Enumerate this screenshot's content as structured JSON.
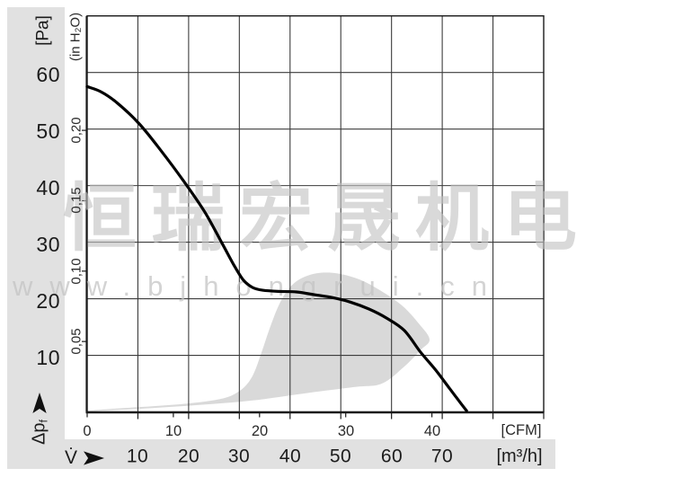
{
  "watermark": {
    "line1": "恒瑞宏晟机电",
    "line2": "www.bjhongrui.cn",
    "color": "#c3c3c3"
  },
  "colors": {
    "band": "#e1e1e1",
    "grid": "#3c3c3c",
    "border": "#1a1a1a",
    "curve": "#000000",
    "region": "#d9d9d9"
  },
  "chart_data": {
    "type": "line",
    "x_axes": {
      "primary": {
        "label": "[m³/h]",
        "axis_symbol": "V̇",
        "ticks": [
          10,
          20,
          30,
          40,
          50,
          60,
          70
        ],
        "range": [
          0,
          90
        ],
        "grid_step": 10
      },
      "secondary": {
        "label": "[CFM]",
        "ticks": [
          0,
          10,
          20,
          30,
          40
        ],
        "m3h_per_cfm": 1.699
      }
    },
    "y_axes": {
      "primary": {
        "label": "[Pa]",
        "axis_symbol_base": "Δp",
        "axis_symbol_sub": "f",
        "ticks": [
          60,
          50,
          40,
          30,
          20,
          10
        ],
        "range": [
          0,
          70
        ],
        "grid_step": 10
      },
      "secondary": {
        "label": "(in H₂O)",
        "ticks": [
          {
            "label": "0,20",
            "value": 0.2
          },
          {
            "label": "0,15",
            "value": 0.15
          },
          {
            "label": "0,10",
            "value": 0.1
          },
          {
            "label": "0,05",
            "value": 0.05
          }
        ],
        "pa_per_inh2o": 248.84
      }
    },
    "series": [
      {
        "name": "static-pressure-curve",
        "points_m3h_pa": [
          [
            0,
            57.5
          ],
          [
            2.7,
            56.6
          ],
          [
            5.8,
            54.7
          ],
          [
            10.3,
            50.9
          ],
          [
            14.7,
            46.0
          ],
          [
            19.1,
            40.7
          ],
          [
            23.2,
            35.3
          ],
          [
            26.6,
            29.8
          ],
          [
            28.9,
            26.0
          ],
          [
            30.8,
            23.3
          ],
          [
            32.6,
            22.0
          ],
          [
            34.6,
            21.5
          ],
          [
            37.7,
            21.3
          ],
          [
            41.3,
            21.2
          ],
          [
            44.8,
            20.7
          ],
          [
            48.4,
            20.2
          ],
          [
            51.9,
            19.4
          ],
          [
            55.5,
            18.2
          ],
          [
            59.0,
            16.6
          ],
          [
            62.5,
            14.4
          ],
          [
            65.7,
            10.6
          ],
          [
            68.7,
            7.4
          ],
          [
            71.4,
            4.2
          ],
          [
            73.5,
            1.7
          ],
          [
            74.8,
            0.2
          ]
        ]
      }
    ],
    "operating_region": {
      "points_m3h_pa": [
        [
          0,
          0.1
        ],
        [
          11.2,
          0.6
        ],
        [
          21.8,
          1.2
        ],
        [
          32.4,
          2.0
        ],
        [
          43.1,
          3.3
        ],
        [
          52.8,
          4.4
        ],
        [
          58.1,
          5.0
        ],
        [
          62.5,
          8.0
        ],
        [
          65.7,
          10.9
        ],
        [
          67.5,
          12.8
        ],
        [
          65.4,
          15.6
        ],
        [
          62.2,
          18.7
        ],
        [
          58.1,
          21.3
        ],
        [
          53.7,
          23.4
        ],
        [
          49.2,
          24.5
        ],
        [
          45.2,
          24.5
        ],
        [
          41.8,
          23.4
        ],
        [
          39.5,
          21.5
        ],
        [
          37.7,
          18.7
        ],
        [
          36.0,
          14.8
        ],
        [
          34.4,
          10.6
        ],
        [
          32.8,
          6.7
        ],
        [
          31.0,
          4.4
        ],
        [
          28.5,
          2.9
        ],
        [
          25.3,
          2.1
        ],
        [
          20.0,
          1.5
        ],
        [
          12.9,
          1.0
        ],
        [
          5.8,
          0.6
        ],
        [
          0,
          0.2
        ]
      ]
    }
  }
}
